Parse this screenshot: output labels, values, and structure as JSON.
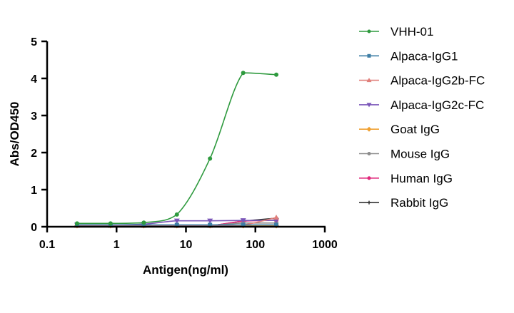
{
  "chart_data": {
    "type": "line",
    "title": "",
    "xlabel": "Antigen(ng/ml)",
    "ylabel": "Abs/OD450",
    "xscale": "log",
    "xlim": [
      0.1,
      1000
    ],
    "ylim": [
      0,
      5
    ],
    "xticks": [
      "0.1",
      "1",
      "10",
      "100",
      "1000"
    ],
    "yticks": [
      "0",
      "1",
      "2",
      "3",
      "4",
      "5"
    ],
    "grid": false,
    "legend_position": "right",
    "x": [
      0.27,
      0.82,
      2.47,
      7.4,
      22.2,
      66.7,
      200
    ],
    "series": [
      {
        "name": "VHH-01",
        "color": "#2e9a3e",
        "marker": "circle",
        "values": [
          0.09,
          0.09,
          0.11,
          0.33,
          1.84,
          4.15,
          4.1
        ]
      },
      {
        "name": "Alpaca-IgG1",
        "color": "#3f7fa6",
        "marker": "square",
        "values": [
          0.05,
          0.05,
          0.05,
          0.05,
          0.05,
          0.05,
          0.05
        ]
      },
      {
        "name": "Alpaca-IgG2b-FC",
        "color": "#e07f7a",
        "marker": "triangle-up",
        "values": [
          0.03,
          0.03,
          0.03,
          0.03,
          0.03,
          0.05,
          0.25
        ]
      },
      {
        "name": "Alpaca-IgG2c-FC",
        "color": "#7a55b8",
        "marker": "triangle-down",
        "values": [
          0.05,
          0.05,
          0.07,
          0.16,
          0.16,
          0.17,
          0.17
        ]
      },
      {
        "name": "Goat IgG",
        "color": "#f0a030",
        "marker": "diamond",
        "values": [
          0.03,
          0.03,
          0.03,
          0.03,
          0.03,
          0.03,
          0.03
        ]
      },
      {
        "name": "Mouse IgG",
        "color": "#8c8c8c",
        "marker": "circle",
        "values": [
          0.04,
          0.04,
          0.04,
          0.04,
          0.04,
          0.1,
          0.1
        ]
      },
      {
        "name": "Human IgG",
        "color": "#e0287a",
        "marker": "circle",
        "values": [
          0.03,
          0.03,
          0.03,
          0.03,
          0.03,
          0.15,
          0.17
        ]
      },
      {
        "name": "Rabbit IgG",
        "color": "#333333",
        "marker": "plus",
        "values": [
          0.03,
          0.03,
          0.03,
          0.03,
          0.03,
          0.15,
          0.23
        ]
      }
    ]
  }
}
